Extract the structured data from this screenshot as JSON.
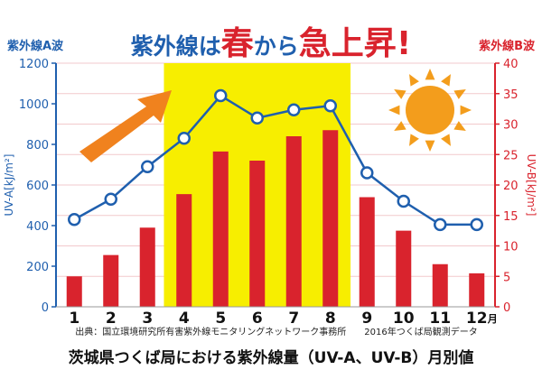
{
  "title": {
    "part1": "紫外線は",
    "part2": "春",
    "part3": "から",
    "part4": "急上昇",
    "part5": "!"
  },
  "left_axis_label": "紫外線A波",
  "right_axis_label": "紫外線B波",
  "left_unit": "UV-A[kJ/m²]",
  "right_unit": "UV-B[kJ/m²]",
  "source_note": "出典：国立環境研究所有害紫外線モニタリングネットワーク事務所　　2016年つくば局観測データ",
  "bottom_title": "茨城県つくば局における紫外線量（UV-A、UV-B）月別値",
  "month_suffix": "月",
  "colors": {
    "blue": "#1f5fae",
    "red": "#d9232d",
    "highlight": "#f7ee00",
    "arrow": "#f0821e",
    "sun": "#f39d1c"
  },
  "chart_data": {
    "type": "bar+line",
    "categories": [
      "1",
      "2",
      "3",
      "4",
      "5",
      "6",
      "7",
      "8",
      "9",
      "10",
      "11",
      "12"
    ],
    "series": [
      {
        "name": "紫外線B波",
        "type": "bar",
        "axis": "right",
        "values": [
          5,
          8.5,
          13,
          18.5,
          25.5,
          24,
          28,
          29,
          18,
          12.5,
          7,
          5.5
        ]
      },
      {
        "name": "紫外線A波",
        "type": "line",
        "axis": "left",
        "values": [
          430,
          530,
          690,
          830,
          1040,
          930,
          970,
          990,
          660,
          520,
          405,
          405
        ]
      }
    ],
    "left_axis": {
      "min": 0,
      "max": 1200,
      "ticks": [
        "0",
        "200",
        "400",
        "600",
        "800",
        "1000",
        "1200"
      ]
    },
    "right_axis": {
      "min": 0,
      "max": 40,
      "ticks": [
        "0",
        "5",
        "10",
        "15",
        "20",
        "25",
        "30",
        "35",
        "40"
      ]
    },
    "highlight_months": [
      "4",
      "8"
    ]
  }
}
